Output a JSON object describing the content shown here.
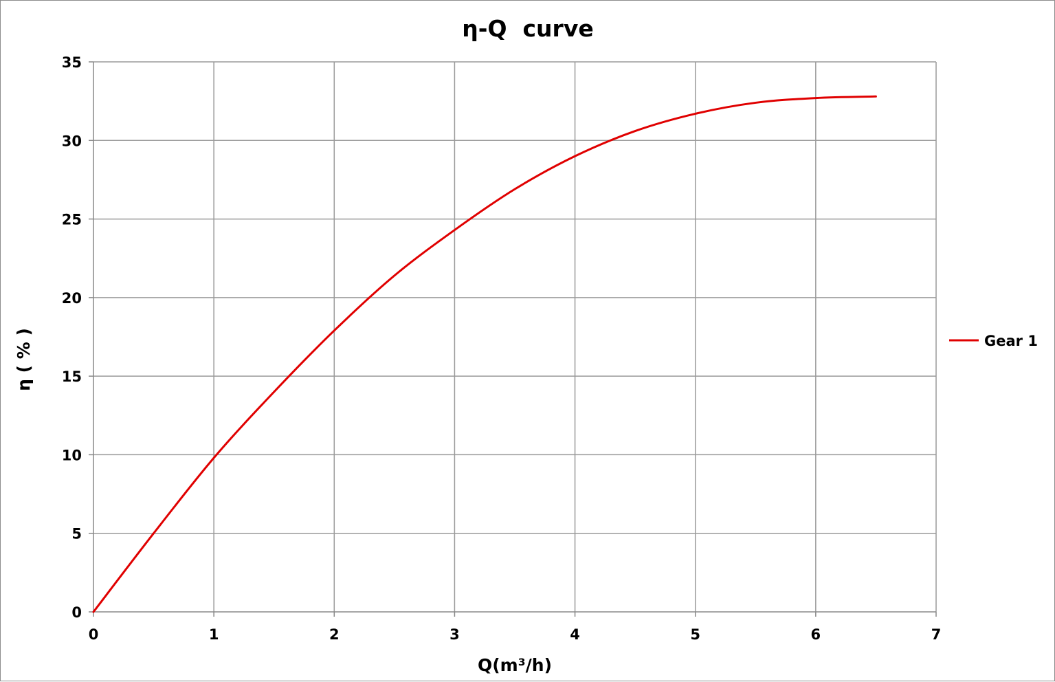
{
  "chart_data": {
    "type": "line",
    "title": "η-Q  curve",
    "xlabel": "Q(m³/h)",
    "ylabel": "η ( % )",
    "xlim": [
      0,
      7
    ],
    "ylim": [
      0,
      35
    ],
    "x_ticks": [
      0,
      1,
      2,
      3,
      4,
      5,
      6,
      7
    ],
    "y_ticks": [
      0,
      5,
      10,
      15,
      20,
      25,
      30,
      35
    ],
    "grid": true,
    "legend_position": "right",
    "series": [
      {
        "name": "Gear 1",
        "color": "#e00000",
        "x": [
          0,
          0.5,
          1.0,
          1.5,
          2.0,
          2.5,
          3.0,
          3.5,
          4.0,
          4.5,
          5.0,
          5.5,
          6.0,
          6.5
        ],
        "y": [
          0,
          5.0,
          9.8,
          14.0,
          17.9,
          21.4,
          24.3,
          26.9,
          29.0,
          30.6,
          31.7,
          32.4,
          32.7,
          32.8
        ]
      }
    ]
  }
}
